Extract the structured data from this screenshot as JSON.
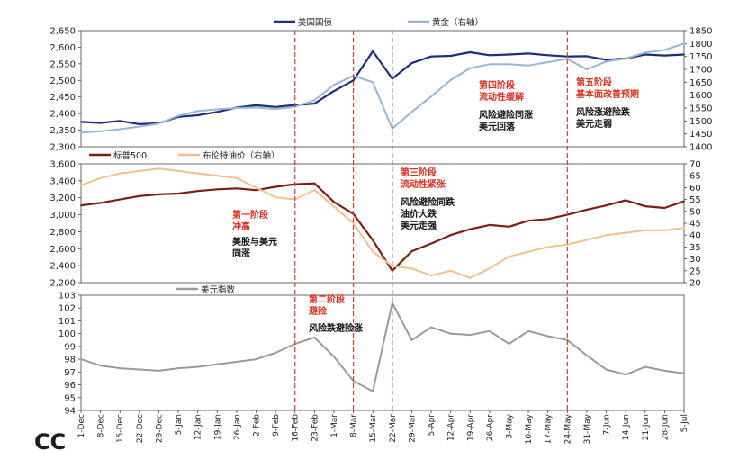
{
  "logo_text": "CC",
  "colors": {
    "treasury": "#1a2f78",
    "gold": "#98b5d6",
    "spx": "#7a1e14",
    "brent": "#f2c08f",
    "dxy": "#9a9a9a",
    "phase_line": "#e03a2c"
  },
  "chart_data": [
    {
      "type": "line",
      "panel": "top",
      "xlabel": "",
      "x": [
        "1-Dec",
        "8-Dec",
        "15-Dec",
        "22-Dec",
        "29-Dec",
        "5-Jan",
        "12-Jan",
        "19-Jan",
        "26-Jan",
        "2-Feb",
        "9-Feb",
        "16-Feb",
        "23-Feb",
        "1-Mar",
        "8-Mar",
        "15-Mar",
        "22-Mar",
        "29-Mar",
        "5-Apr",
        "12-Apr",
        "19-Apr",
        "26-Apr",
        "3-May",
        "10-May",
        "17-May",
        "24-May",
        "31-May",
        "7-Jun",
        "14-Jun",
        "21-Jun",
        "28-Jun",
        "5-Jul"
      ],
      "ylim_left": [
        2300,
        2650
      ],
      "ylim_right": [
        1400,
        1850
      ],
      "yticks_left": [
        "2,300",
        "2,350",
        "2,400",
        "2,450",
        "2,500",
        "2,550",
        "2,600",
        "2,650"
      ],
      "yticks_right": [
        "1400",
        "1450",
        "1500",
        "1550",
        "1600",
        "1650",
        "1700",
        "1750",
        "1800",
        "1850"
      ],
      "series": [
        {
          "name": "美国国债",
          "axis": "left",
          "values": [
            2375,
            2372,
            2378,
            2368,
            2371,
            2390,
            2395,
            2405,
            2418,
            2425,
            2420,
            2426,
            2430,
            2468,
            2500,
            2588,
            2505,
            2552,
            2572,
            2574,
            2585,
            2576,
            2578,
            2581,
            2576,
            2572,
            2573,
            2562,
            2566,
            2578,
            2575,
            2578
          ]
        },
        {
          "name": "黄金（右轴）",
          "axis": "right",
          "values": [
            1455,
            1460,
            1468,
            1478,
            1490,
            1520,
            1538,
            1545,
            1550,
            1552,
            1546,
            1555,
            1580,
            1640,
            1675,
            1650,
            1470,
            1535,
            1595,
            1658,
            1705,
            1720,
            1720,
            1715,
            1728,
            1740,
            1700,
            1730,
            1742,
            1765,
            1775,
            1800
          ]
        }
      ]
    },
    {
      "type": "line",
      "panel": "middle",
      "ylim_left": [
        2200,
        3600
      ],
      "ylim_right": [
        20,
        70
      ],
      "yticks_left": [
        "2,200",
        "2,400",
        "2,600",
        "2,800",
        "3,000",
        "3,200",
        "3,400",
        "3,600"
      ],
      "yticks_right": [
        "20",
        "25",
        "30",
        "35",
        "40",
        "45",
        "50",
        "55",
        "60",
        "65",
        "70"
      ],
      "series": [
        {
          "name": "标普500",
          "axis": "left",
          "values": [
            3110,
            3140,
            3180,
            3220,
            3240,
            3250,
            3280,
            3300,
            3310,
            3290,
            3330,
            3360,
            3370,
            3150,
            3010,
            2700,
            2340,
            2570,
            2660,
            2760,
            2830,
            2880,
            2860,
            2930,
            2950,
            3000,
            3060,
            3110,
            3170,
            3100,
            3080,
            3160
          ]
        },
        {
          "name": "布伦特油价（右轴）",
          "axis": "right",
          "values": [
            61,
            64,
            66,
            67,
            68,
            67,
            66,
            65,
            64,
            60,
            56,
            55,
            59,
            52,
            45,
            33,
            27,
            26,
            23,
            25,
            22,
            26,
            31,
            33,
            35,
            36,
            38,
            40,
            41,
            42,
            42,
            43
          ]
        }
      ]
    },
    {
      "type": "line",
      "panel": "bottom",
      "ylim": [
        94,
        103
      ],
      "yticks": [
        "94",
        "95",
        "96",
        "97",
        "98",
        "99",
        "100",
        "101",
        "102",
        "103"
      ],
      "series": [
        {
          "name": "美元指数",
          "values": [
            98.0,
            97.5,
            97.3,
            97.2,
            97.1,
            97.3,
            97.4,
            97.6,
            97.8,
            98.0,
            98.5,
            99.2,
            99.7,
            98.2,
            96.3,
            95.5,
            102.4,
            99.5,
            100.5,
            100.0,
            99.9,
            100.2,
            99.2,
            100.2,
            99.8,
            99.5,
            98.3,
            97.2,
            96.8,
            97.4,
            97.1,
            96.9
          ]
        }
      ]
    }
  ],
  "phase_lines_x": [
    "16-Feb",
    "8-Mar",
    "22-Mar",
    "24-May"
  ],
  "annotations": {
    "phase1_title": "第一阶段",
    "phase1_sub": "冲高",
    "phase1_desc1": "美股与美元",
    "phase1_desc2": "同涨",
    "phase2_title": "第二阶段",
    "phase2_sub": "避险",
    "phase2_desc": "风险跌避险涨",
    "phase3_title": "第三阶段",
    "phase3_sub": "流动性紧张",
    "phase3_desc1": "风险避险同跌",
    "phase3_desc2": "油价大跌",
    "phase3_desc3": "美元走强",
    "phase4_title": "第四阶段",
    "phase4_sub": "流动性缓解",
    "phase4_desc1": "风险避险同涨",
    "phase4_desc2": "美元回落",
    "phase5_title": "第五阶段",
    "phase5_sub": "基本面改善预期",
    "phase5_desc1": "风险涨避险跌",
    "phase5_desc2": "美元走弱"
  }
}
